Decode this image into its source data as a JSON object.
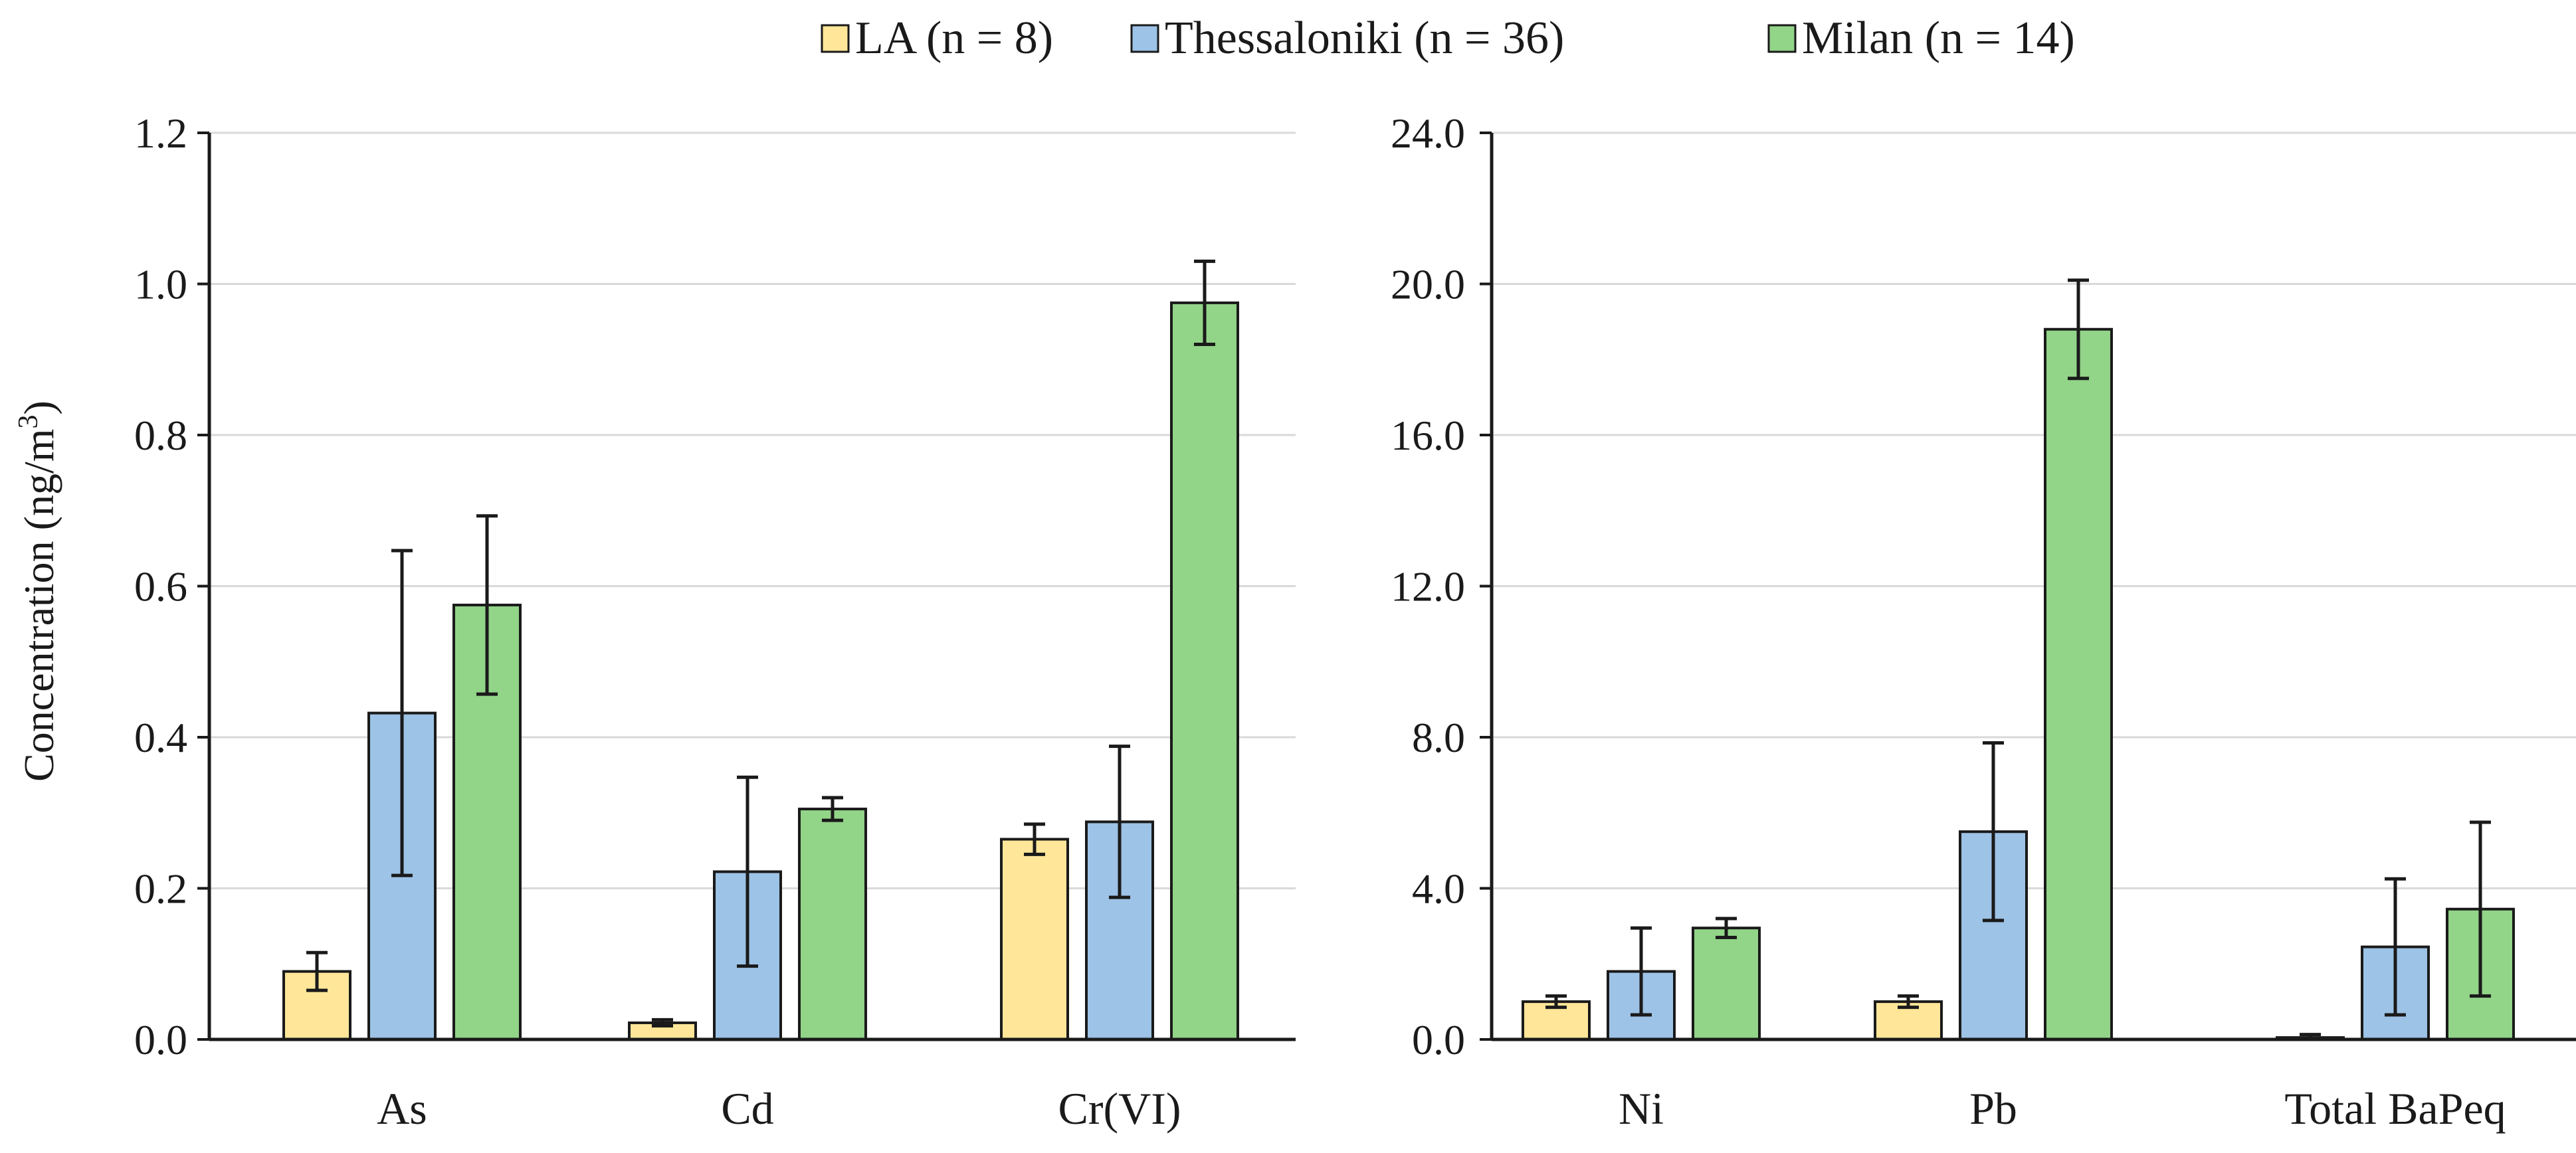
{
  "legend": [
    {
      "label": "LA (n = 8)",
      "color": "#FFE699"
    },
    {
      "label": "Thessaloniki (n = 36)",
      "color": "#9DC3E6"
    },
    {
      "label": "Milan (n = 14)",
      "color": "#92D488"
    }
  ],
  "y_axis_label_main": "Concentration (ng/m",
  "y_axis_label_sup": "3",
  "y_axis_label_close": ")",
  "chart_data": [
    {
      "type": "bar",
      "ylabel": "Concentration (ng/m3)",
      "ylim": [
        0,
        1.2
      ],
      "yticks": [
        0,
        0.2,
        0.4,
        0.6,
        0.8,
        1.0,
        1.2
      ],
      "ytick_labels": [
        "0.0",
        "0.2",
        "0.4",
        "0.6",
        "0.8",
        "1.0",
        "1.2"
      ],
      "categories": [
        "As",
        "Cd",
        "Cr(VI)"
      ],
      "grid": true,
      "series": [
        {
          "name": "LA (n = 8)",
          "values": [
            0.09,
            0.022,
            0.265
          ],
          "errors": [
            0.025,
            0.004,
            0.02
          ]
        },
        {
          "name": "Thessaloniki (n = 36)",
          "values": [
            0.432,
            0.222,
            0.288
          ],
          "errors": [
            0.215,
            0.125,
            0.1
          ]
        },
        {
          "name": "Milan (n = 14)",
          "values": [
            0.575,
            0.305,
            0.975
          ],
          "errors": [
            0.118,
            0.015,
            0.055
          ]
        }
      ]
    },
    {
      "type": "bar",
      "ylabel": "",
      "ylim": [
        0,
        24
      ],
      "yticks": [
        0,
        4,
        8,
        12,
        16,
        20,
        24
      ],
      "ytick_labels": [
        "0.0",
        "4.0",
        "8.0",
        "12.0",
        "16.0",
        "20.0",
        "24.0"
      ],
      "categories": [
        "Ni",
        "Pb",
        "Total BaPeq"
      ],
      "grid": true,
      "series": [
        {
          "name": "LA (n = 8)",
          "values": [
            1.0,
            1.0,
            0.05
          ],
          "errors": [
            0.15,
            0.15,
            0.08
          ]
        },
        {
          "name": "Thessaloniki (n = 36)",
          "values": [
            1.8,
            5.5,
            2.45
          ],
          "errors": [
            1.15,
            2.35,
            1.8
          ]
        },
        {
          "name": "Milan (n = 14)",
          "values": [
            2.95,
            18.8,
            3.45
          ],
          "errors": [
            0.25,
            1.3,
            2.3
          ]
        }
      ]
    }
  ]
}
